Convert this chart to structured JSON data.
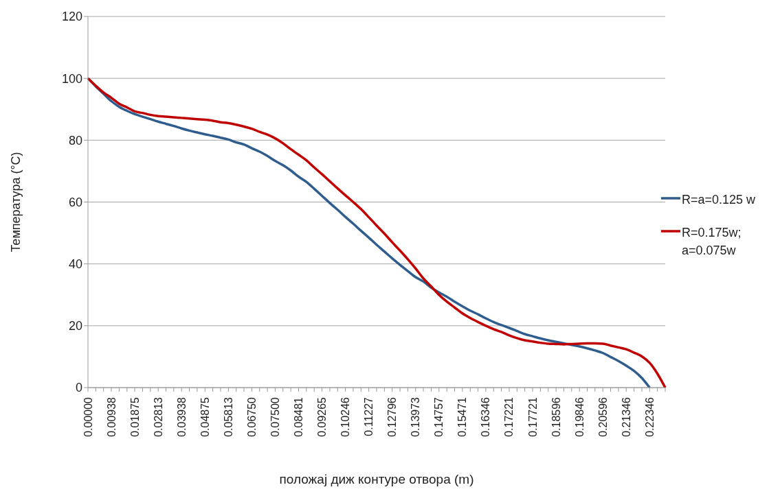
{
  "chart_data": {
    "type": "line",
    "xlabel": "положај  диж  контуре отвора (m)",
    "ylabel": "Температура  (°C)",
    "categories": [
      "0.00000",
      null,
      null,
      "0.00938",
      null,
      null,
      "0.01875",
      null,
      null,
      "0.02813",
      null,
      null,
      "0.03938",
      null,
      null,
      "0.04875",
      null,
      null,
      "0.05813",
      null,
      null,
      "0.06750",
      null,
      null,
      "0.07500",
      null,
      null,
      "0.08481",
      null,
      null,
      "0.09265",
      null,
      null,
      "0.10246",
      null,
      null,
      "0.11227",
      null,
      null,
      "0.12796",
      null,
      null,
      "0.13973",
      null,
      null,
      "0.14757",
      null,
      null,
      "0.15471",
      null,
      null,
      "0.16346",
      null,
      null,
      "0.17221",
      null,
      null,
      "0.17721",
      null,
      null,
      "0.18596",
      null,
      null,
      "0.19846",
      null,
      null,
      "0.20596",
      null,
      null,
      "0.21346",
      null,
      null,
      "0.22346",
      null,
      null
    ],
    "series": [
      {
        "name": "R=a=0.125 w",
        "color": "#2f5d8e",
        "values": [
          100,
          97.4,
          95,
          92.6,
          90.8,
          89.5,
          88.4,
          87.6,
          86.8,
          86,
          85.3,
          84.6,
          83.8,
          83.1,
          82.5,
          81.9,
          81.4,
          80.8,
          80.2,
          79.3,
          78.6,
          77.4,
          76.3,
          74.9,
          73.3,
          71.9,
          70.2,
          68.2,
          66.5,
          64.3,
          62,
          59.7,
          57.5,
          55.2,
          53,
          50.7,
          48.5,
          46.2,
          44,
          41.8,
          39.7,
          37.7,
          35.7,
          34.3,
          32.3,
          30.8,
          29.4,
          27.8,
          26.3,
          24.9,
          23.7,
          22.4,
          21.2,
          20.2,
          19.3,
          18.3,
          17.3,
          16.6,
          15.9,
          15.3,
          14.8,
          14.3,
          13.8,
          13.3,
          12.7,
          12,
          11.2,
          9.9,
          8.6,
          7.1,
          5.4,
          3.1,
          0,
          null,
          null
        ]
      },
      {
        "name": "R=0.175w; a=0.075w",
        "color": "#c00000",
        "values": [
          100,
          97.6,
          95.4,
          93.7,
          91.8,
          90.6,
          89.3,
          88.8,
          88.2,
          87.8,
          87.6,
          87.4,
          87.2,
          87,
          86.8,
          86.6,
          86.3,
          85.8,
          85.5,
          85,
          84.4,
          83.7,
          82.7,
          81.8,
          80.6,
          79,
          77.1,
          75.3,
          73.5,
          71.2,
          69,
          66.7,
          64.4,
          62.2,
          60,
          57.7,
          55.1,
          52.4,
          49.8,
          47,
          44.3,
          41.5,
          38.5,
          35.3,
          32.7,
          30,
          27.8,
          25.9,
          24,
          22.5,
          21.2,
          20,
          18.9,
          18,
          16.9,
          16,
          15.3,
          14.9,
          14.5,
          14.2,
          14.1,
          14,
          14.1,
          14.2,
          14.3,
          14.3,
          14.2,
          13.6,
          13,
          12.4,
          11.3,
          10.1,
          8,
          4.5,
          0
        ]
      }
    ],
    "ylim": [
      0,
      120
    ],
    "yticks": [
      0,
      20,
      40,
      60,
      80,
      100,
      120
    ],
    "grid": "y",
    "legend": "right",
    "marker": "none",
    "line_style": "solid"
  }
}
